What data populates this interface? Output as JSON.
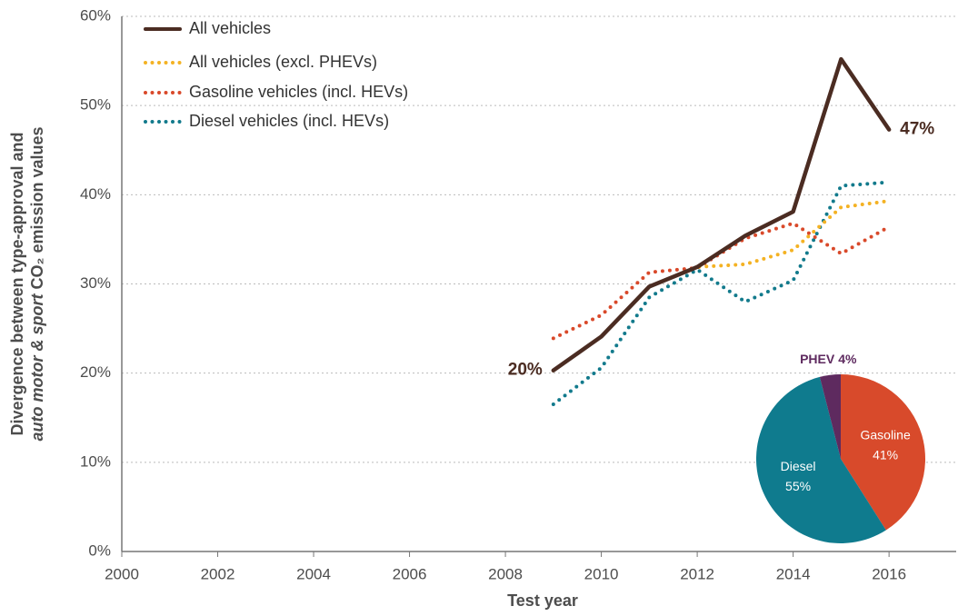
{
  "chart_data": [
    {
      "type": "line",
      "xlabel": "Test year",
      "ylabel": [
        "Divergence between type-approval and",
        "auto motor & sport",
        "CO₂ emission values"
      ],
      "x": [
        2009,
        2010,
        2011,
        2012,
        2013,
        2014,
        2015,
        2016
      ],
      "series": [
        {
          "name": "All vehicles",
          "color": "#4b2c22",
          "style": "solid",
          "values": [
            20.3,
            24.1,
            29.7,
            31.9,
            35.4,
            38.1,
            55.2,
            47.3
          ],
          "value_labels": [
            "20%",
            null,
            null,
            null,
            null,
            null,
            null,
            "47%"
          ]
        },
        {
          "name": "All vehicles (excl. PHEVs)",
          "color": "#f4b223",
          "style": "dotted",
          "values": [
            20.3,
            24.1,
            29.7,
            31.9,
            32.2,
            33.8,
            38.6,
            39.3
          ]
        },
        {
          "name": "Gasoline vehicles (incl. HEVs)",
          "color": "#d9492a",
          "style": "dotted",
          "values": [
            23.9,
            26.5,
            31.3,
            31.8,
            35.1,
            36.8,
            33.4,
            36.4
          ]
        },
        {
          "name": "Diesel vehicles (incl. HEVs)",
          "color": "#127a8c",
          "style": "dotted",
          "values": [
            16.5,
            20.6,
            28.5,
            31.6,
            28.0,
            30.4,
            41.0,
            41.4
          ]
        }
      ],
      "xlim": [
        2000,
        2017.4
      ],
      "xticks": [
        2000,
        2002,
        2004,
        2006,
        2008,
        2010,
        2012,
        2014,
        2016
      ],
      "ylim": [
        0,
        60
      ],
      "yticks": [
        {
          "value": 0,
          "label": "0%"
        },
        {
          "value": 10,
          "label": "10%"
        },
        {
          "value": 20,
          "label": "20%"
        },
        {
          "value": 30,
          "label": "30%"
        },
        {
          "value": 40,
          "label": "40%"
        },
        {
          "value": 50,
          "label": "50%"
        },
        {
          "value": 60,
          "label": "60%"
        }
      ],
      "grid": true,
      "legend": "top-left"
    },
    {
      "type": "pie",
      "categories": [
        "Gasoline",
        "Diesel",
        "PHEV"
      ],
      "values": [
        41,
        55,
        4
      ],
      "value_labels": [
        "41%",
        "55%",
        "4%"
      ],
      "colors": [
        "#d84a2b",
        "#0f7b8e",
        "#5e2a5f"
      ]
    }
  ]
}
